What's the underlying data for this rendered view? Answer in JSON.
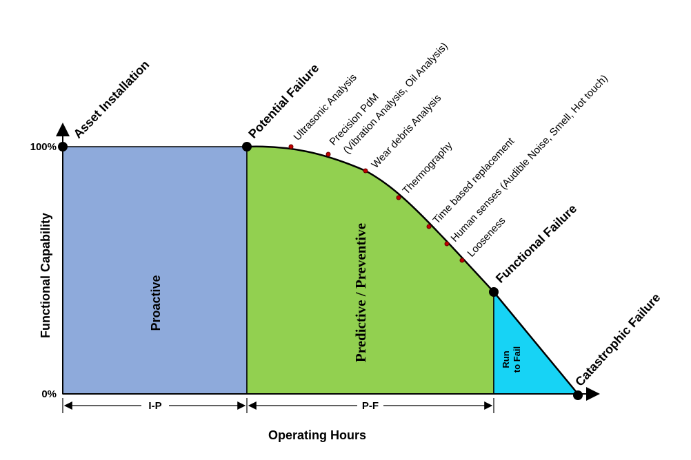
{
  "axes": {
    "y_label": "Functional Capability",
    "x_label": "Operating Hours",
    "y_top": "100%",
    "y_bottom": "0%"
  },
  "milestones": [
    "Asset Installation",
    "Potential Failure",
    "Functional Failure",
    "Catastrophic Failure"
  ],
  "regions": {
    "proactive": "Proactive",
    "predictive": "Predictive / Preventive",
    "run_to_fail": [
      "Run",
      "to Fail"
    ]
  },
  "intervals": [
    "I-P",
    "P-F"
  ],
  "techniques": [
    "Ultrasonic Analysis",
    "Precision PdM",
    "(Vibration Analysis, Oil Analysis)",
    "Wear debris Analysis",
    "Thermography",
    "Time based replacement",
    "Human senses (Audible Noise, Smell, Hot touch)",
    "Looseness"
  ]
}
